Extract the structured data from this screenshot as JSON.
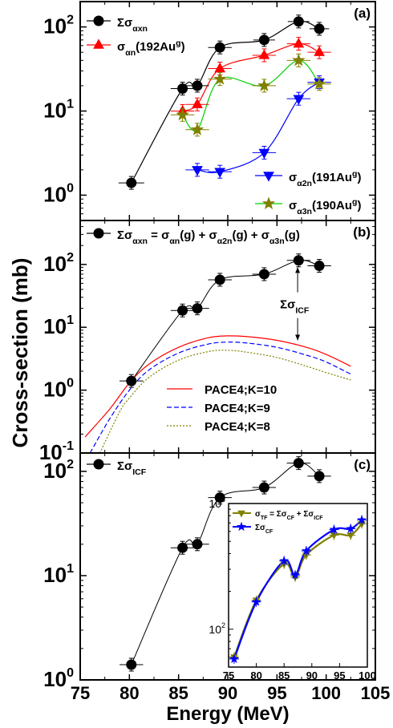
{
  "figure": {
    "xlabel": "Energy (MeV)",
    "ylabel": "Cross-section (mb)",
    "xticks": [
      "75",
      "80",
      "85",
      "90",
      "95",
      "100",
      "105"
    ]
  },
  "chart_data": [
    {
      "type": "scatter",
      "panel_label": "(a)",
      "xlim": [
        75,
        105
      ],
      "ylim": [
        0.5,
        200
      ],
      "yscale": "log",
      "ytick_labels": [
        "10^0",
        "10^1",
        "10^2"
      ],
      "legend_left": [
        "Σσ_αxn",
        "σ_αn(192Au^g)"
      ],
      "legend_right": [
        "σ_α2n(191Au^g)",
        "σ_α3n(190Au^g)"
      ],
      "series": [
        {
          "name": "Σσ_αxn",
          "color": "#000000",
          "marker": "circle",
          "x": [
            80.2,
            85.4,
            86.9,
            89.2,
            93.7,
            97.2,
            99.3
          ],
          "y": [
            1.4,
            18.5,
            20,
            57,
            70,
            116,
            95
          ],
          "xerr": [
            1.3,
            1.2,
            1.2,
            1.2,
            1.1,
            1.1,
            1.0
          ]
        },
        {
          "name": "σ_αn(192Au^g)",
          "color": "#ff0000",
          "marker": "triangle",
          "x": [
            85.4,
            86.9,
            89.2,
            93.7,
            97.2,
            99.3
          ],
          "y": [
            10,
            12,
            32,
            46,
            63,
            50
          ]
        },
        {
          "name": "σ_α2n(191Au^g)",
          "color": "#0000ff",
          "marker": "triangle-down",
          "x": [
            86.9,
            89.2,
            93.7,
            97.2,
            99.3
          ],
          "y": [
            2.0,
            1.9,
            3.2,
            14,
            22
          ]
        },
        {
          "name": "σ_α3n(190Au^g)",
          "color": "#808000",
          "marker": "star",
          "x": [
            85.4,
            86.9,
            89.2,
            93.7,
            97.2,
            99.3
          ],
          "y": [
            9,
            6,
            24,
            20,
            40,
            21
          ]
        }
      ]
    },
    {
      "type": "line",
      "panel_label": "(b)",
      "xlim": [
        75,
        105
      ],
      "ylim": [
        0.1,
        500
      ],
      "yscale": "log",
      "ytick_labels": [
        "10^-1",
        "10^0",
        "10^1",
        "10^2"
      ],
      "equation": "Σσ_αxn = σ_αn(g) + σ_α2n(g) + σ_α3n(g)",
      "annotation": "Σσ_ICF",
      "series": [
        {
          "name": "Σσ_αxn",
          "color": "#000000",
          "marker": "circle",
          "x": [
            80.2,
            85.4,
            86.9,
            89.2,
            93.7,
            97.2,
            99.3
          ],
          "y": [
            1.4,
            18.5,
            20,
            57,
            70,
            116,
            95
          ]
        },
        {
          "name": "PACE4;K=10",
          "color": "#ff0000",
          "dash": "solid",
          "x": [
            75.5,
            78,
            80,
            82,
            85,
            88,
            90,
            92,
            95,
            98,
            100,
            102.5
          ],
          "y": [
            0.18,
            0.5,
            1.3,
            2.6,
            4.8,
            6.8,
            7.3,
            7.1,
            6.2,
            4.8,
            3.7,
            2.4
          ]
        },
        {
          "name": "PACE4;K=9",
          "color": "#0000ff",
          "dash": "dashed",
          "x": [
            76,
            78,
            80,
            82,
            85,
            88,
            90,
            92,
            95,
            98,
            100,
            102.5
          ],
          "y": [
            0.1,
            0.35,
            1.0,
            2.1,
            3.9,
            5.4,
            5.8,
            5.6,
            4.8,
            3.6,
            2.8,
            1.8
          ]
        },
        {
          "name": "PACE4;K=8",
          "color": "#808000",
          "dash": "dotted",
          "x": [
            77,
            79,
            80,
            82,
            85,
            88,
            90,
            92,
            95,
            98,
            100,
            102.5
          ],
          "y": [
            0.1,
            0.45,
            0.75,
            1.6,
            3.0,
            4.1,
            4.3,
            4.0,
            3.3,
            2.4,
            1.9,
            1.45
          ]
        }
      ]
    },
    {
      "type": "scatter",
      "panel_label": "(c)",
      "xlim": [
        75,
        105
      ],
      "ylim": [
        1,
        150
      ],
      "yscale": "log",
      "ytick_labels": [
        "10^0",
        "10^1",
        "10^2"
      ],
      "series": [
        {
          "name": "Σσ_ICF",
          "color": "#000000",
          "marker": "circle",
          "x": [
            80.2,
            85.4,
            86.9,
            89.2,
            93.7,
            97.2,
            99.3
          ],
          "y": [
            1.4,
            18.5,
            20,
            56,
            70,
            120,
            90
          ]
        }
      ],
      "inset": {
        "type": "line",
        "xlim": [
          75,
          100
        ],
        "ylim": [
          50,
          1000
        ],
        "yscale": "log",
        "xtick_labels": [
          "75",
          "80",
          "85",
          "90",
          "95",
          "100"
        ],
        "ytick_labels": [
          "10^2",
          "10^3"
        ],
        "series": [
          {
            "name": "σ_TF = Σσ_CF + Σσ_ICF",
            "color": "#808000",
            "marker": "triangle-down",
            "x": [
              76,
              80,
              85,
              87,
              89,
              94,
              97,
              99
            ],
            "y": [
              60,
              170,
              330,
              260,
              390,
              560,
              560,
              690
            ]
          },
          {
            "name": "Σσ_CF",
            "color": "#0000ff",
            "marker": "star",
            "x": [
              76,
              80,
              85,
              87,
              89,
              94,
              97,
              99
            ],
            "y": [
              58,
              165,
              350,
              270,
              420,
              620,
              630,
              740
            ]
          }
        ]
      }
    }
  ]
}
